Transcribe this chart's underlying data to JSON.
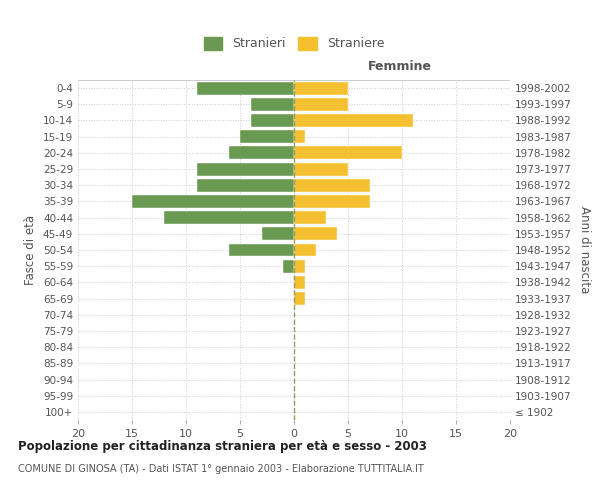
{
  "age_groups": [
    "100+",
    "95-99",
    "90-94",
    "85-89",
    "80-84",
    "75-79",
    "70-74",
    "65-69",
    "60-64",
    "55-59",
    "50-54",
    "45-49",
    "40-44",
    "35-39",
    "30-34",
    "25-29",
    "20-24",
    "15-19",
    "10-14",
    "5-9",
    "0-4"
  ],
  "birth_years": [
    "≤ 1902",
    "1903-1907",
    "1908-1912",
    "1913-1917",
    "1918-1922",
    "1923-1927",
    "1928-1932",
    "1933-1937",
    "1938-1942",
    "1943-1947",
    "1948-1952",
    "1953-1957",
    "1958-1962",
    "1963-1967",
    "1968-1972",
    "1973-1977",
    "1978-1982",
    "1983-1987",
    "1988-1992",
    "1993-1997",
    "1998-2002"
  ],
  "males": [
    0,
    0,
    0,
    0,
    0,
    0,
    0,
    0,
    0,
    1,
    6,
    3,
    12,
    15,
    9,
    9,
    6,
    5,
    4,
    4,
    9
  ],
  "females": [
    0,
    0,
    0,
    0,
    0,
    0,
    0,
    1,
    1,
    1,
    2,
    4,
    3,
    7,
    7,
    5,
    10,
    1,
    11,
    5,
    5
  ],
  "male_color": "#6a9a52",
  "female_color": "#f5c030",
  "bar_height": 0.8,
  "xlim": 20,
  "title": "Popolazione per cittadinanza straniera per età e sesso - 2003",
  "subtitle": "COMUNE DI GINOSA (TA) - Dati ISTAT 1° gennaio 2003 - Elaborazione TUTTITALIA.IT",
  "ylabel_left": "Fasce di età",
  "ylabel_right": "Anni di nascita",
  "xlabel_femmine": "Femmine",
  "legend_stranieri": "Stranieri",
  "legend_straniere": "Straniere",
  "background_color": "#ffffff",
  "grid_color": "#cccccc"
}
